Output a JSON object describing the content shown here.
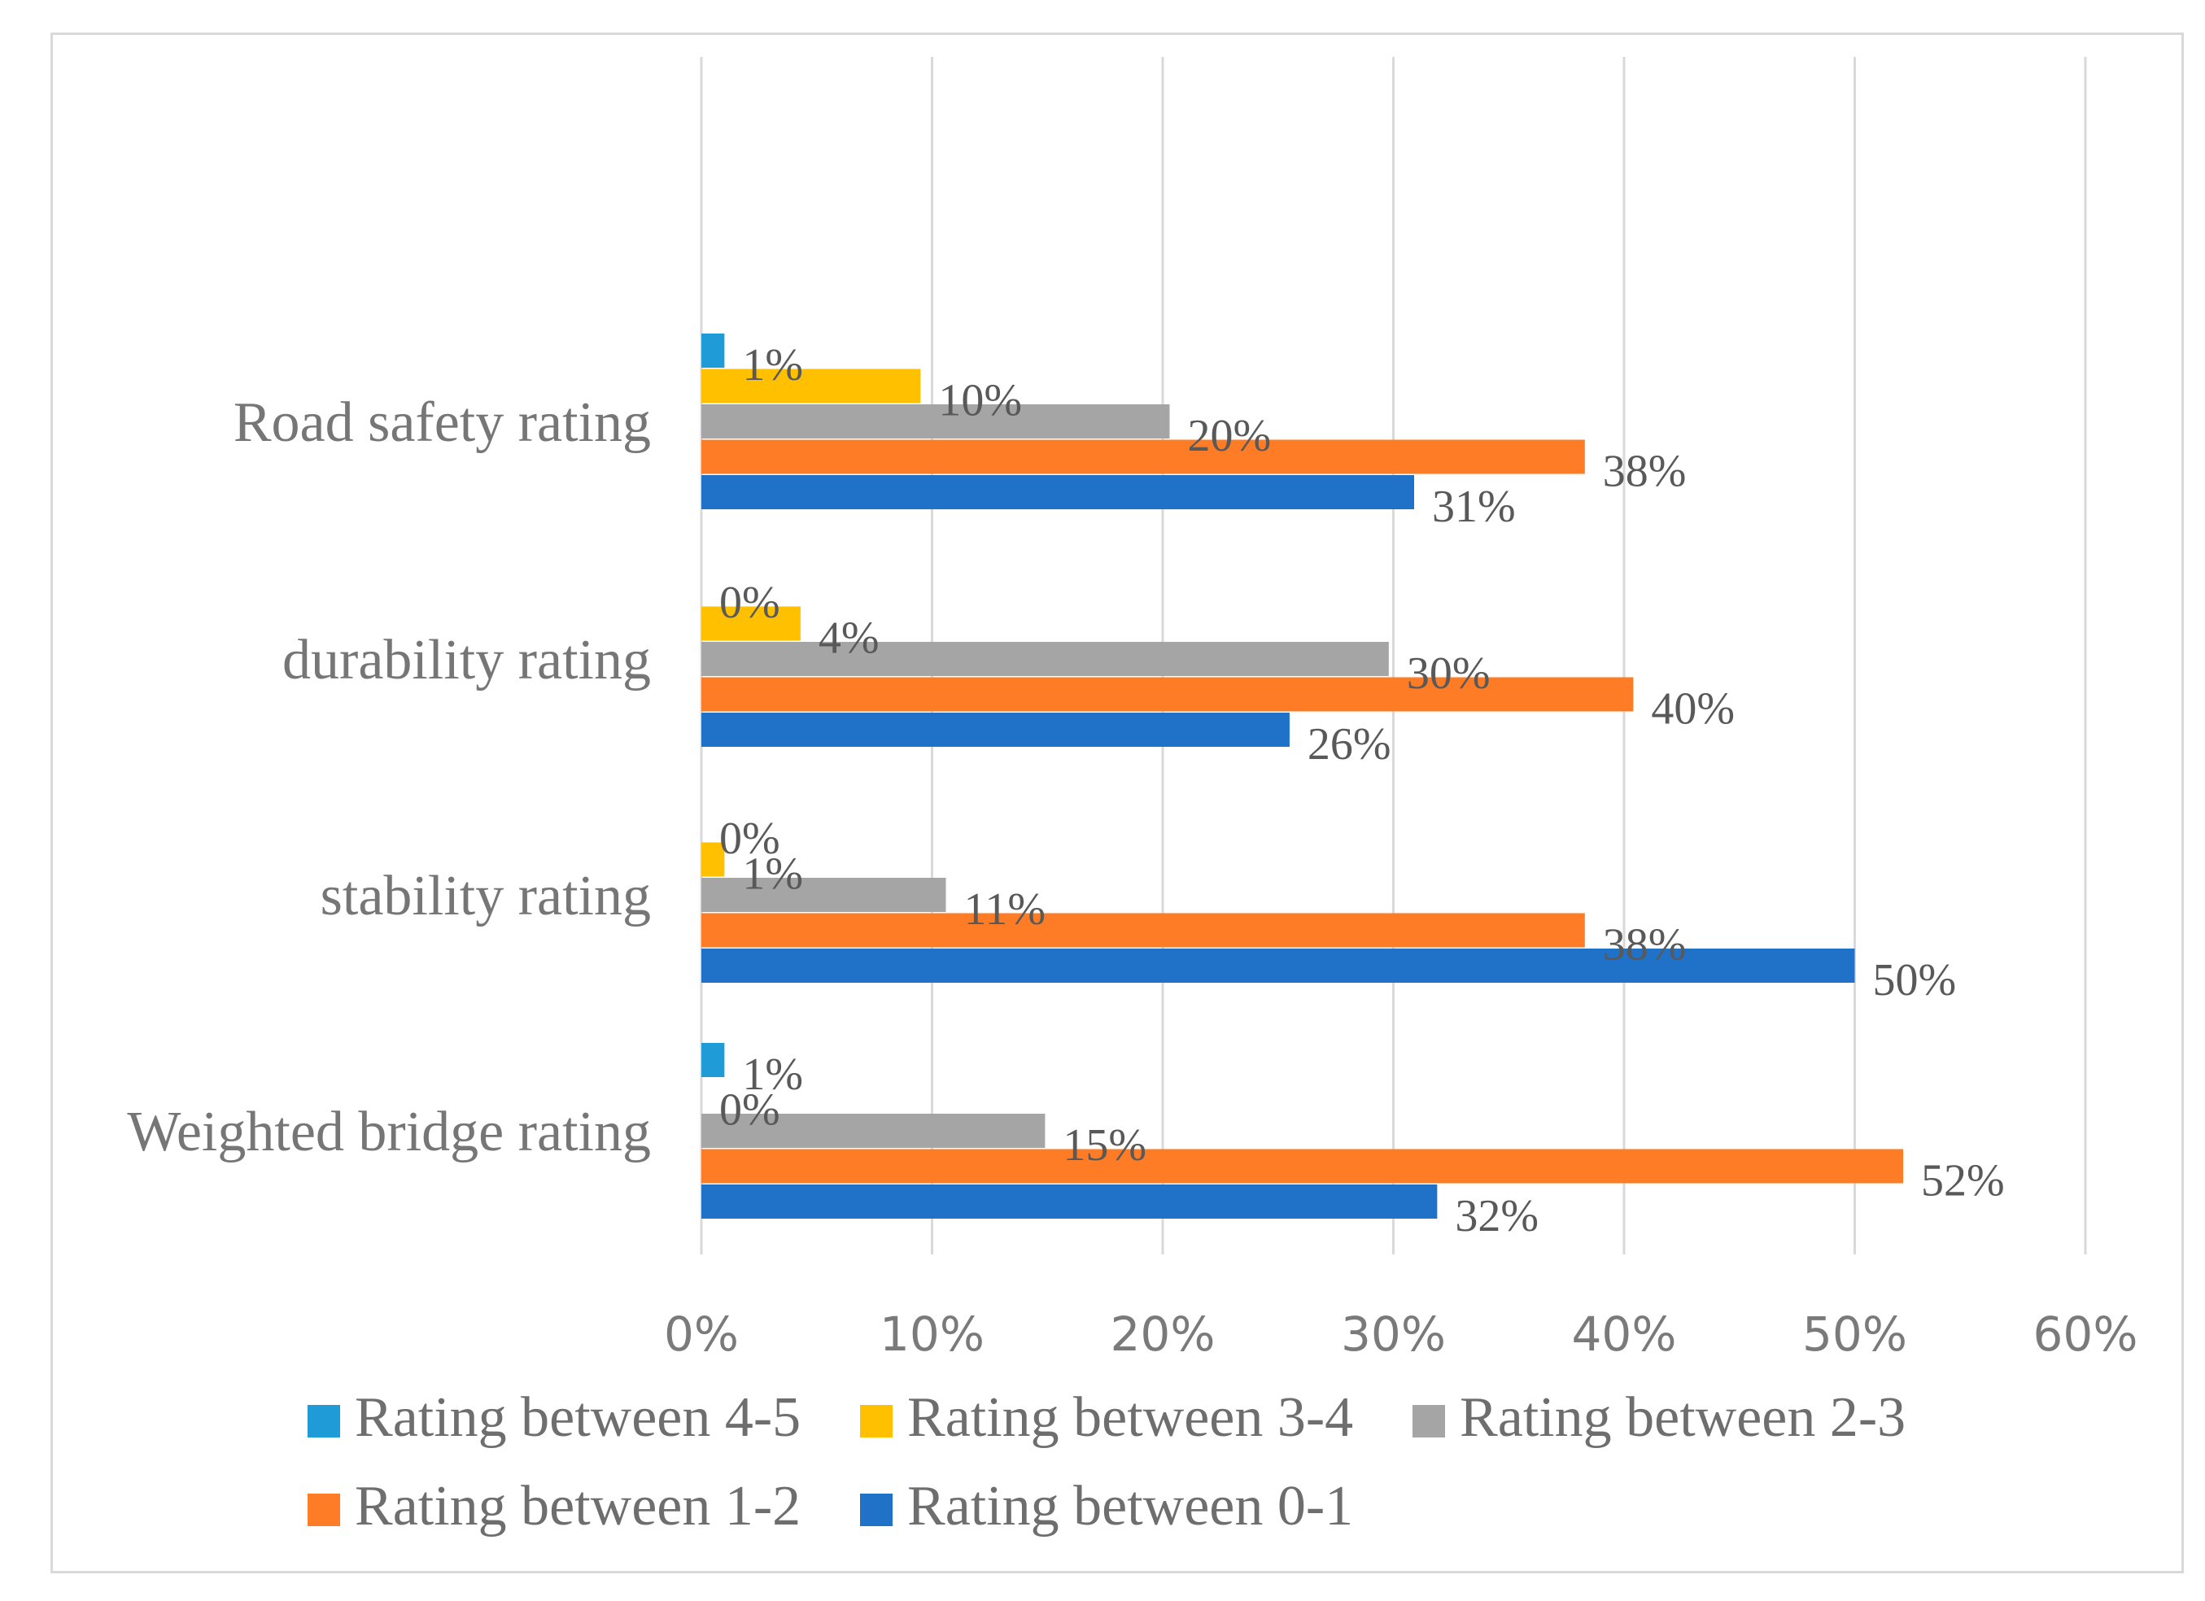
{
  "chart_data": {
    "type": "bar",
    "orientation": "horizontal",
    "title": "",
    "xlabel": "",
    "ylabel": "",
    "xlim": [
      0,
      60
    ],
    "grid": true,
    "x_ticks": [
      "0%",
      "10%",
      "20%",
      "30%",
      "40%",
      "50%",
      "60%"
    ],
    "categories": [
      "Road safety rating",
      "durability rating",
      "stability rating",
      "Weighted bridge rating"
    ],
    "series": [
      {
        "name": "Rating between 4-5",
        "color": "#1f9bd7",
        "values": [
          1,
          0,
          0,
          1
        ],
        "labels": [
          "1%",
          "0%",
          "0%",
          "1%"
        ]
      },
      {
        "name": "Rating between 3-4",
        "color": "#ffc000",
        "values": [
          9.5,
          4.3,
          1,
          0
        ],
        "labels": [
          "10%",
          "4%",
          "1%",
          "0%"
        ]
      },
      {
        "name": "Rating between 2-3",
        "color": "#a5a5a5",
        "values": [
          20.3,
          29.8,
          10.6,
          14.9
        ],
        "labels": [
          "20%",
          "30%",
          "11%",
          "15%"
        ]
      },
      {
        "name": "Rating between 1-2",
        "color": "#fd7c25",
        "values": [
          38.3,
          40.4,
          38.3,
          52.1
        ],
        "labels": [
          "38%",
          "40%",
          "38%",
          "52%"
        ]
      },
      {
        "name": "Rating between 0-1",
        "color": "#1f72c8",
        "values": [
          30.9,
          25.5,
          50,
          31.9
        ],
        "labels": [
          "31%",
          "26%",
          "50%",
          "32%"
        ]
      }
    ],
    "legend": {
      "position": "bottom",
      "entries": [
        "Rating between 4-5",
        "Rating between 3-4",
        "Rating between 2-3",
        "Rating between 1-2",
        "Rating between 0-1"
      ]
    }
  }
}
